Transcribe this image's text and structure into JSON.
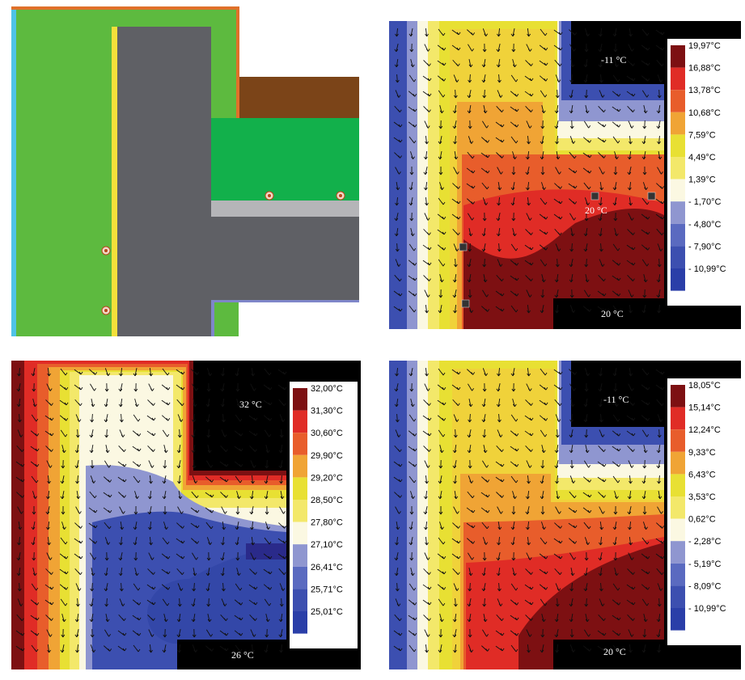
{
  "panels": {
    "geometry": {
      "colors": {
        "outer_render": "#4fc3e6",
        "wall": "#5dba3f",
        "membrane": "#f4e03a",
        "concrete": "#5f6065",
        "insulation": "#12b04b",
        "soil": "#7b4418",
        "screed": "#b5b5b8",
        "flashing": "#e0712a",
        "trim": "#7f86c9"
      },
      "sensor_icon": "thermocouple-icon"
    },
    "winter_a": {
      "temp_outside": "-11 °C",
      "temp_inside_upper": "20 °C",
      "temp_inside_lower": "20 °C",
      "legend": [
        "19,97°C",
        "16,88°C",
        "13,78°C",
        "10,68°C",
        "7,59°C",
        "4,49°C",
        "1,39°C",
        "- 1,70°C",
        "- 4,80°C",
        "- 7,90°C",
        "- 10,99°C"
      ]
    },
    "summer": {
      "temp_outside": "32 °C",
      "temp_inside": "26 °C",
      "legend": [
        "32,00°C",
        "31,30°C",
        "30,60°C",
        "29,90°C",
        "29,20°C",
        "28,50°C",
        "27,80°C",
        "27,10°C",
        "26,41°C",
        "25,71°C",
        "25,01°C"
      ]
    },
    "winter_b": {
      "temp_outside": "-11 °C",
      "temp_inside": "20 °C",
      "legend": [
        "18,05°C",
        "15,14°C",
        "12,24°C",
        "9,33°C",
        "6,43°C",
        "3,53°C",
        "0,62°C",
        "- 2,28°C",
        "- 5,19°C",
        "- 8,09°C",
        "- 10,99°C"
      ]
    }
  }
}
